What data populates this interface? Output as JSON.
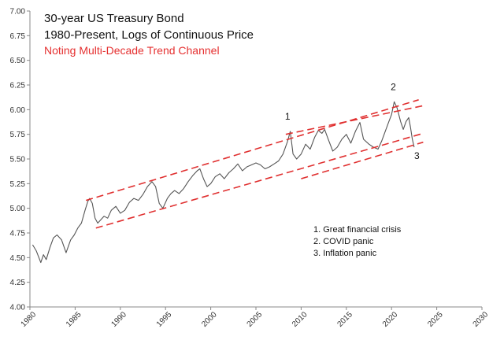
{
  "chart_data": {
    "type": "line",
    "title_lines": [
      "30-year US Treasury Bond",
      "1980-Present, Logs of Continuous Price",
      "Noting Multi-Decade Trend Channel"
    ],
    "xlabel": "",
    "ylabel": "",
    "xlim": [
      1980,
      2030
    ],
    "ylim": [
      4.0,
      7.0
    ],
    "x_ticks": [
      1980,
      1985,
      1990,
      1995,
      2000,
      2005,
      2010,
      2015,
      2020,
      2025,
      2030
    ],
    "y_ticks": [
      "4.00",
      "4.25",
      "4.50",
      "4.75",
      "5.00",
      "5.25",
      "5.50",
      "5.75",
      "6.00",
      "6.25",
      "6.50",
      "6.75",
      "7.00"
    ],
    "grid": false,
    "colors": {
      "series": "#555555",
      "channel": "#e03030",
      "highlight_title": "#e53030"
    },
    "series": [
      {
        "name": "30-year US Treasury Bond (log continuous price)",
        "x": [
          1980.3,
          1980.7,
          1981.2,
          1981.5,
          1981.8,
          1982.2,
          1982.6,
          1983.0,
          1983.5,
          1984.0,
          1984.5,
          1984.9,
          1985.3,
          1985.7,
          1986.1,
          1986.4,
          1986.6,
          1986.9,
          1987.2,
          1987.5,
          1987.8,
          1988.2,
          1988.6,
          1989.0,
          1989.5,
          1990.0,
          1990.5,
          1991.0,
          1991.5,
          1992.0,
          1992.5,
          1993.0,
          1993.5,
          1993.9,
          1994.3,
          1994.7,
          1995.2,
          1995.6,
          1996.0,
          1996.5,
          1997.0,
          1997.5,
          1998.0,
          1998.5,
          1998.8,
          1999.2,
          1999.6,
          2000.0,
          2000.5,
          2001.0,
          2001.5,
          2002.0,
          2002.5,
          2003.0,
          2003.5,
          2004.0,
          2004.5,
          2005.0,
          2005.5,
          2006.0,
          2006.5,
          2007.0,
          2007.5,
          2008.0,
          2008.5,
          2008.8,
          2009.1,
          2009.5,
          2010.0,
          2010.5,
          2011.0,
          2011.5,
          2011.9,
          2012.3,
          2012.6,
          2013.0,
          2013.5,
          2014.0,
          2014.5,
          2015.0,
          2015.5,
          2016.0,
          2016.5,
          2016.9,
          2017.5,
          2018.0,
          2018.5,
          2018.9,
          2019.3,
          2019.7,
          2020.0,
          2020.3,
          2020.6,
          2021.0,
          2021.3,
          2021.6,
          2021.9,
          2022.1,
          2022.3,
          2022.5
        ],
        "values": [
          4.63,
          4.57,
          4.45,
          4.53,
          4.48,
          4.6,
          4.7,
          4.73,
          4.68,
          4.55,
          4.68,
          4.73,
          4.8,
          4.85,
          4.98,
          5.07,
          5.1,
          5.05,
          4.9,
          4.85,
          4.88,
          4.92,
          4.9,
          4.98,
          5.02,
          4.95,
          4.98,
          5.06,
          5.1,
          5.08,
          5.14,
          5.22,
          5.27,
          5.22,
          5.05,
          5.0,
          5.1,
          5.15,
          5.18,
          5.15,
          5.2,
          5.27,
          5.33,
          5.38,
          5.4,
          5.3,
          5.22,
          5.25,
          5.32,
          5.35,
          5.3,
          5.36,
          5.4,
          5.45,
          5.38,
          5.42,
          5.44,
          5.46,
          5.44,
          5.4,
          5.42,
          5.45,
          5.48,
          5.55,
          5.68,
          5.78,
          5.55,
          5.5,
          5.55,
          5.65,
          5.6,
          5.72,
          5.79,
          5.76,
          5.8,
          5.7,
          5.58,
          5.62,
          5.7,
          5.75,
          5.66,
          5.78,
          5.87,
          5.7,
          5.65,
          5.62,
          5.6,
          5.68,
          5.78,
          5.88,
          5.95,
          6.08,
          6.02,
          5.88,
          5.8,
          5.88,
          5.92,
          5.82,
          5.7,
          5.62
        ]
      }
    ],
    "channel_lines": [
      {
        "name": "upper trend line",
        "x": [
          1986.2,
          2023.0
        ],
        "values": [
          5.08,
          6.1
        ]
      },
      {
        "name": "lower trend line",
        "x": [
          1987.3,
          2023.5
        ],
        "values": [
          4.8,
          5.76
        ]
      },
      {
        "name": "lower trend line extension",
        "x": [
          2008.3,
          2023.5
        ],
        "values": [
          5.75,
          6.04
        ]
      },
      {
        "name": "lower support line",
        "x": [
          2010.0,
          2023.5
        ],
        "values": [
          5.3,
          5.67
        ]
      }
    ],
    "annotations": [
      {
        "label": "1",
        "x": 2008.5,
        "y": 5.9
      },
      {
        "label": "2",
        "x": 2020.2,
        "y": 6.2
      },
      {
        "label": "3",
        "x": 2022.8,
        "y": 5.5
      }
    ],
    "legend_notes": [
      "1.  Great financial crisis",
      "2.  COVID panic",
      "3.  Inflation panic"
    ]
  }
}
